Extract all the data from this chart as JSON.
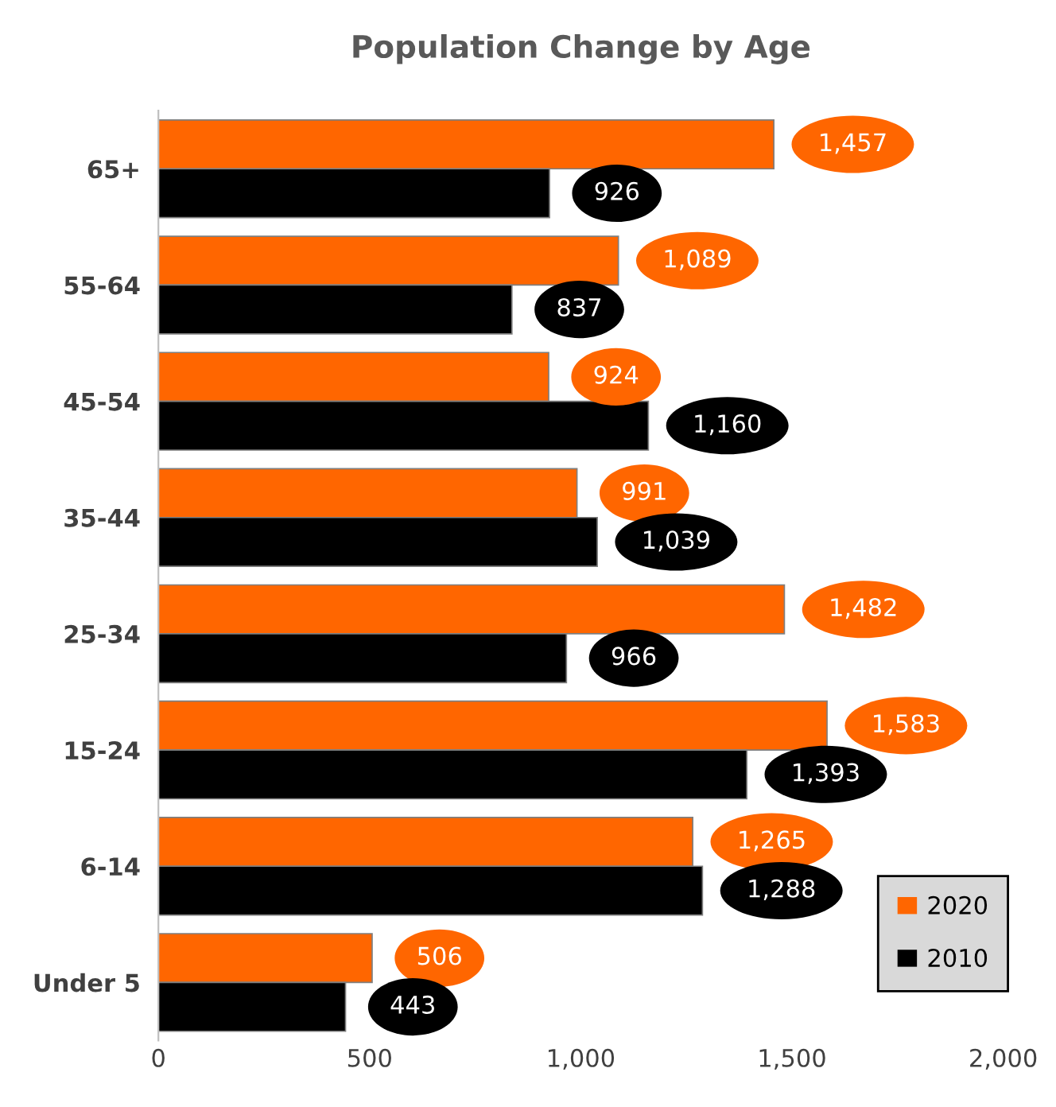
{
  "chart_data": {
    "type": "bar",
    "orientation": "horizontal",
    "title": "Population Change by Age",
    "categories": [
      "65+",
      "55-64",
      "45-54",
      "35-44",
      "25-34",
      "15-24",
      "6-14",
      "Under 5"
    ],
    "series": [
      {
        "name": "2020",
        "color": "#ff6600",
        "values": [
          1457,
          1089,
          924,
          991,
          1482,
          1583,
          1265,
          506
        ],
        "value_labels": [
          "1,457",
          "1,089",
          "924",
          "991",
          "1,482",
          "1,583",
          "1,265",
          "506"
        ]
      },
      {
        "name": "2010",
        "color": "#000000",
        "values": [
          926,
          837,
          1160,
          1039,
          966,
          1393,
          1288,
          443
        ],
        "value_labels": [
          "926",
          "837",
          "1,160",
          "1,039",
          "966",
          "1,393",
          "1,288",
          "443"
        ]
      }
    ],
    "xlim": [
      0,
      2000
    ],
    "xticks": [
      0,
      500,
      {
        "value": 1000,
        "label": "1,000"
      },
      {
        "value": 1500,
        "label": "1,500"
      },
      {
        "value": 2000,
        "label": "2,000"
      }
    ],
    "grid": false,
    "legend": "bottom right"
  }
}
